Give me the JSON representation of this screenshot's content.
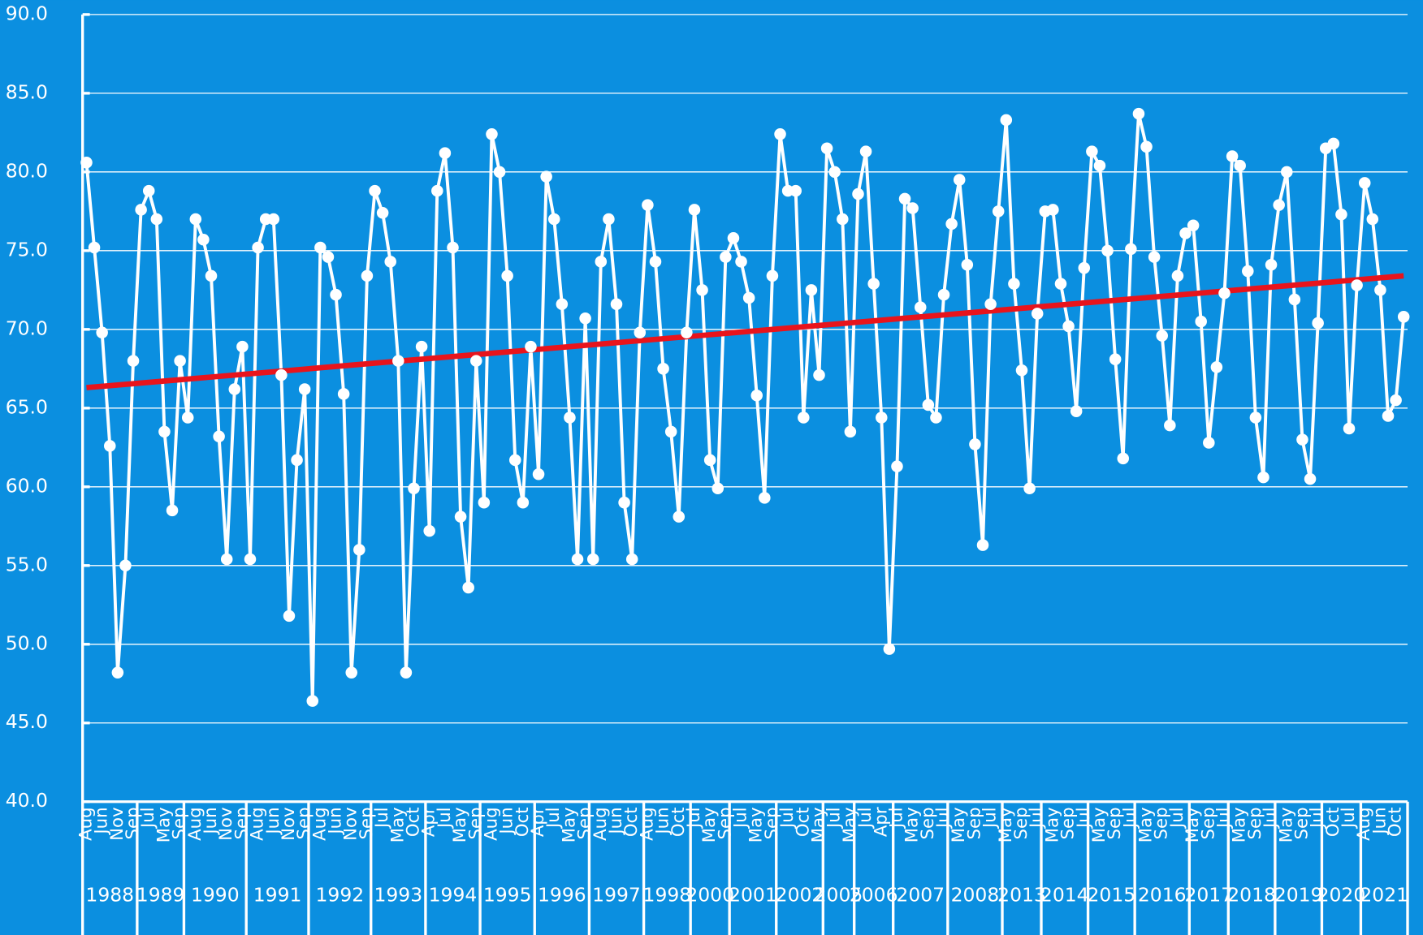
{
  "chart_data": {
    "type": "line",
    "categories": [
      "Aug",
      null,
      "Jun",
      null,
      "Nov",
      null,
      "Sep",
      null,
      "Jul",
      null,
      "May",
      null,
      "Sep",
      null,
      "Aug",
      null,
      "Jun",
      null,
      "Nov",
      null,
      "Sep",
      null,
      "Aug",
      null,
      "Jun",
      null,
      "Nov",
      null,
      "Sep",
      null,
      "Aug",
      null,
      "Jun",
      null,
      "Nov",
      null,
      "Sep",
      null,
      "Jul",
      null,
      "May",
      null,
      "Oct",
      null,
      "Apr",
      null,
      "Jul",
      null,
      "May",
      null,
      "Sep",
      null,
      "Aug",
      null,
      "Jun",
      null,
      "Oct",
      null,
      "Apr",
      null,
      "Jul",
      null,
      "May",
      null,
      "Sep",
      null,
      "Aug",
      null,
      "Jun",
      null,
      "Oct",
      null,
      "Aug",
      null,
      "Jun",
      null,
      "Oct",
      null,
      "Jul",
      null,
      "May",
      null,
      "Sep",
      null,
      "Jul",
      null,
      "May",
      null,
      "Sep",
      null,
      "Jul",
      null,
      "Oct",
      null,
      "May",
      null,
      "Jul",
      null,
      "May",
      null,
      "Jul",
      null,
      "Apr",
      null,
      "Jul",
      null,
      "May",
      null,
      "Sep",
      null,
      "Jul",
      null,
      "May",
      null,
      "Sep",
      null,
      "Jul",
      null,
      "May",
      null,
      "Sep",
      null,
      "Jul",
      null,
      "May",
      null,
      "Sep",
      null,
      "Jul",
      null,
      "May",
      null,
      "Sep",
      null,
      "Jul",
      null,
      "May",
      null,
      "Sep",
      null,
      "Jul",
      null,
      "May",
      null,
      "Sep",
      null,
      "Jul",
      null,
      "May",
      null,
      "Sep",
      null,
      "Jul",
      null,
      "May",
      null,
      "Sep",
      null,
      "Jul",
      null,
      "Oct",
      null,
      "Jul",
      null,
      "Aug",
      null,
      "Jun",
      null,
      "Oct",
      null
    ],
    "x_groups": [
      "1988",
      "1988",
      "1988",
      "1988",
      "1988",
      "1988",
      "1988",
      "1989",
      "1989",
      "1989",
      "1989",
      "1989",
      "1989",
      "1990",
      "1990",
      "1990",
      "1990",
      "1990",
      "1990",
      "1990",
      "1990",
      "1991",
      "1991",
      "1991",
      "1991",
      "1991",
      "1991",
      "1991",
      "1991",
      "1992",
      "1992",
      "1992",
      "1992",
      "1992",
      "1992",
      "1992",
      "1992",
      "1993",
      "1993",
      "1993",
      "1993",
      "1993",
      "1993",
      "1993",
      "1994",
      "1994",
      "1994",
      "1994",
      "1994",
      "1994",
      "1994",
      "1995",
      "1995",
      "1995",
      "1995",
      "1995",
      "1995",
      "1995",
      "1996",
      "1996",
      "1996",
      "1996",
      "1996",
      "1996",
      "1996",
      "1997",
      "1997",
      "1997",
      "1997",
      "1997",
      "1997",
      "1997",
      "1998",
      "1998",
      "1998",
      "1998",
      "1998",
      "1998",
      "2000",
      "2000",
      "2000",
      "2000",
      "2000",
      "2001",
      "2001",
      "2001",
      "2001",
      "2001",
      "2001",
      "2002",
      "2002",
      "2002",
      "2002",
      "2002",
      "2002",
      "2005",
      "2005",
      "2005",
      "2005",
      "2006",
      "2006",
      "2006",
      "2006",
      "2006",
      "2007",
      "2007",
      "2007",
      "2007",
      "2007",
      "2007",
      "2007",
      "2008",
      "2008",
      "2008",
      "2008",
      "2008",
      "2008",
      "2008",
      "2013",
      "2013",
      "2013",
      "2013",
      "2013",
      "2014",
      "2014",
      "2014",
      "2014",
      "2014",
      "2014",
      "2015",
      "2015",
      "2015",
      "2015",
      "2015",
      "2015",
      "2016",
      "2016",
      "2016",
      "2016",
      "2016",
      "2016",
      "2016",
      "2017",
      "2017",
      "2017",
      "2017",
      "2017",
      "2018",
      "2018",
      "2018",
      "2018",
      "2018",
      "2018",
      "2019",
      "2019",
      "2019",
      "2019",
      "2019",
      "2019",
      "2020",
      "2020",
      "2020",
      "2020",
      "2020",
      "2021",
      "2021",
      "2021",
      "2021",
      "2021",
      "2021"
    ],
    "values": [
      80.6,
      75.2,
      69.8,
      62.6,
      48.2,
      55.0,
      68.0,
      77.6,
      78.8,
      77.0,
      63.5,
      58.5,
      68.0,
      64.4,
      77.0,
      75.7,
      73.4,
      63.2,
      55.4,
      66.2,
      68.9,
      55.4,
      75.2,
      77.0,
      77.0,
      67.1,
      51.8,
      61.7,
      66.2,
      46.4,
      75.2,
      74.6,
      72.2,
      65.9,
      48.2,
      56.0,
      73.4,
      78.8,
      77.4,
      74.3,
      68.0,
      48.2,
      59.9,
      68.9,
      57.2,
      78.8,
      81.2,
      75.2,
      58.1,
      53.6,
      68.0,
      59.0,
      82.4,
      80.0,
      73.4,
      61.7,
      59.0,
      68.9,
      60.8,
      79.7,
      77.0,
      71.6,
      64.4,
      55.4,
      70.7,
      55.4,
      74.3,
      77.0,
      71.6,
      59.0,
      55.4,
      69.8,
      77.9,
      74.3,
      67.5,
      63.5,
      58.1,
      69.8,
      77.6,
      72.5,
      61.7,
      59.9,
      74.6,
      75.8,
      74.3,
      72.0,
      65.8,
      59.3,
      73.4,
      82.4,
      78.8,
      78.8,
      64.4,
      72.5,
      67.1,
      81.5,
      80.0,
      77.0,
      63.5,
      78.6,
      81.3,
      72.9,
      64.4,
      49.7,
      61.3,
      78.3,
      77.7,
      71.4,
      65.2,
      64.4,
      72.2,
      76.7,
      79.5,
      74.1,
      62.7,
      56.3,
      71.6,
      77.5,
      83.3,
      72.9,
      67.4,
      59.9,
      71.0,
      77.5,
      77.6,
      72.9,
      70.2,
      64.8,
      73.9,
      81.3,
      80.4,
      75.0,
      68.1,
      61.8,
      75.1,
      83.7,
      81.6,
      74.6,
      69.6,
      63.9,
      73.4,
      76.1,
      76.6,
      70.5,
      62.8,
      67.6,
      72.3,
      81.0,
      80.4,
      73.7,
      64.4,
      60.6,
      74.1,
      77.9,
      80.0,
      71.9,
      63.0,
      60.5,
      70.4,
      81.5,
      81.8,
      77.3,
      63.7,
      72.8,
      79.3,
      77.0,
      72.5,
      64.5,
      65.5,
      70.8
    ],
    "color": "#ffffff",
    "trendline": {
      "values": [
        66.3,
        73.4
      ],
      "color": "#e8141c"
    },
    "ylim": [
      40,
      90
    ],
    "yticks": [
      {
        "value": 40,
        "label": "40.0"
      },
      {
        "value": 45,
        "label": "45.0"
      },
      {
        "value": 50,
        "label": "50.0"
      },
      {
        "value": 55,
        "label": "55.0"
      },
      {
        "value": 60,
        "label": "60.0"
      },
      {
        "value": 65,
        "label": "65.0"
      },
      {
        "value": 70,
        "label": "70.0"
      },
      {
        "value": 75,
        "label": "75.0"
      },
      {
        "value": 80,
        "label": "80.0"
      },
      {
        "value": 85,
        "label": "85.0"
      },
      {
        "value": 90,
        "label": "90.0"
      }
    ],
    "grid": true
  }
}
